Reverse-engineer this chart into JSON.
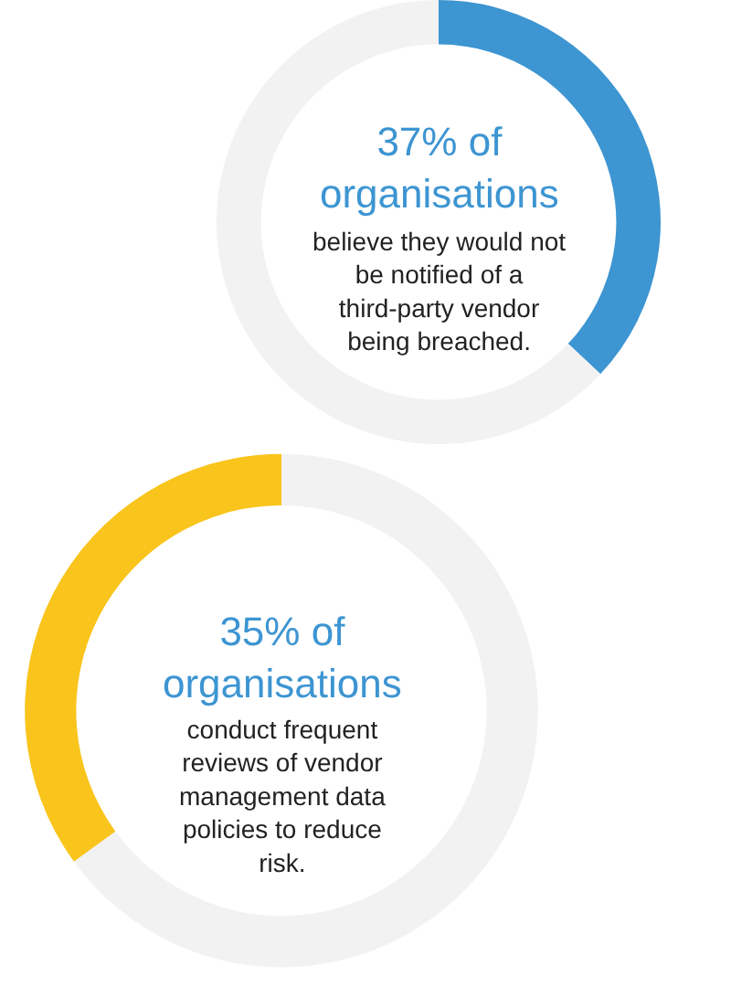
{
  "chart_data": [
    {
      "type": "donut",
      "title": "37% of organisations",
      "subtitle": "believe they would not be notified of a third-party vendor being breached.",
      "categories": [
        null,
        null
      ],
      "values": [
        37,
        63
      ],
      "colors": [
        "#3d95d2",
        "#f2f2f2"
      ]
    },
    {
      "type": "donut",
      "title": "35% of organisations",
      "subtitle": "conduct frequent reviews of vendor management data policies to reduce risk.",
      "categories": [
        null,
        null
      ],
      "values": [
        65,
        35
      ],
      "colors": [
        "#f2f2f2",
        "#f9c41c"
      ]
    }
  ]
}
